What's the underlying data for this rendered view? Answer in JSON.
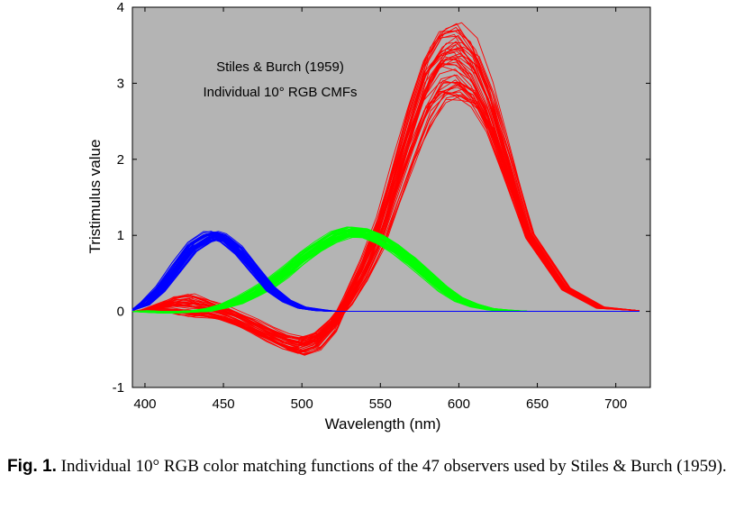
{
  "chart_data": {
    "type": "line",
    "xlabel": "Wavelength (nm)",
    "ylabel": "Tristimulus value",
    "xlim": [
      392,
      722
    ],
    "ylim": [
      -1,
      4
    ],
    "xticks": [
      400,
      450,
      500,
      550,
      600,
      650,
      700
    ],
    "yticks": [
      -1,
      0,
      1,
      2,
      3,
      4
    ],
    "grid": false,
    "background": "#b4b4b4",
    "annotations": [
      "Stiles & Burch (1959)",
      "Individual 10° RGB CMFs"
    ],
    "observer_count": 47,
    "series": [
      {
        "color": "#ff0000",
        "x": [
          392,
          400,
          410,
          420,
          430,
          440,
          450,
          460,
          470,
          480,
          490,
          500,
          510,
          520,
          525,
          530,
          540,
          550,
          560,
          570,
          580,
          590,
          600,
          610,
          620,
          630,
          645,
          668,
          690,
          715
        ],
        "y": [
          0.0,
          0.01,
          0.05,
          0.08,
          0.08,
          0.04,
          -0.02,
          -0.1,
          -0.2,
          -0.3,
          -0.4,
          -0.45,
          -0.38,
          -0.18,
          0.0,
          0.17,
          0.55,
          1.05,
          1.7,
          2.35,
          2.95,
          3.25,
          3.3,
          3.1,
          2.65,
          2.0,
          1.0,
          0.3,
          0.05,
          0.01
        ],
        "individual_spread_y": [
          0.0,
          0.01,
          0.05,
          0.12,
          0.15,
          0.12,
          0.1,
          0.1,
          0.1,
          0.1,
          0.1,
          0.12,
          0.12,
          0.08,
          0.02,
          0.08,
          0.15,
          0.22,
          0.3,
          0.4,
          0.48,
          0.5,
          0.5,
          0.45,
          0.35,
          0.22,
          0.05,
          0.02,
          0.01,
          0.0
        ]
      },
      {
        "color": "#00ff00",
        "x": [
          392,
          400,
          410,
          420,
          430,
          440,
          450,
          460,
          470,
          480,
          490,
          500,
          510,
          520,
          530,
          540,
          550,
          560,
          570,
          580,
          590,
          600,
          610,
          620,
          630,
          645
        ],
        "y": [
          0.0,
          0.0,
          -0.01,
          -0.01,
          0.0,
          0.02,
          0.07,
          0.15,
          0.25,
          0.38,
          0.53,
          0.7,
          0.85,
          0.98,
          1.04,
          1.03,
          0.95,
          0.82,
          0.66,
          0.48,
          0.3,
          0.16,
          0.08,
          0.03,
          0.01,
          0.0
        ],
        "individual_spread_y": [
          0.0,
          0.01,
          0.01,
          0.01,
          0.01,
          0.02,
          0.03,
          0.05,
          0.06,
          0.07,
          0.07,
          0.07,
          0.07,
          0.07,
          0.07,
          0.06,
          0.06,
          0.06,
          0.06,
          0.05,
          0.04,
          0.03,
          0.02,
          0.01,
          0.01,
          0.0
        ]
      },
      {
        "color": "#0000ff",
        "x": [
          392,
          400,
          410,
          420,
          430,
          440,
          445,
          450,
          460,
          470,
          480,
          490,
          500,
          510,
          520,
          530,
          550,
          600,
          650,
          715
        ],
        "y": [
          0.02,
          0.1,
          0.3,
          0.58,
          0.85,
          0.98,
          1.0,
          0.97,
          0.8,
          0.55,
          0.3,
          0.14,
          0.05,
          0.02,
          0.0,
          0.0,
          0.0,
          0.0,
          0.0,
          0.0
        ],
        "individual_spread_y": [
          0.01,
          0.02,
          0.04,
          0.06,
          0.07,
          0.07,
          0.06,
          0.06,
          0.06,
          0.05,
          0.04,
          0.02,
          0.01,
          0.01,
          0.0,
          0.0,
          0.0,
          0.0,
          0.0,
          0.0
        ]
      }
    ]
  },
  "caption": {
    "label": "Fig. 1.",
    "text": "Individual 10° RGB color matching functions of the 47 observers used by Stiles & Burch (1959)."
  }
}
